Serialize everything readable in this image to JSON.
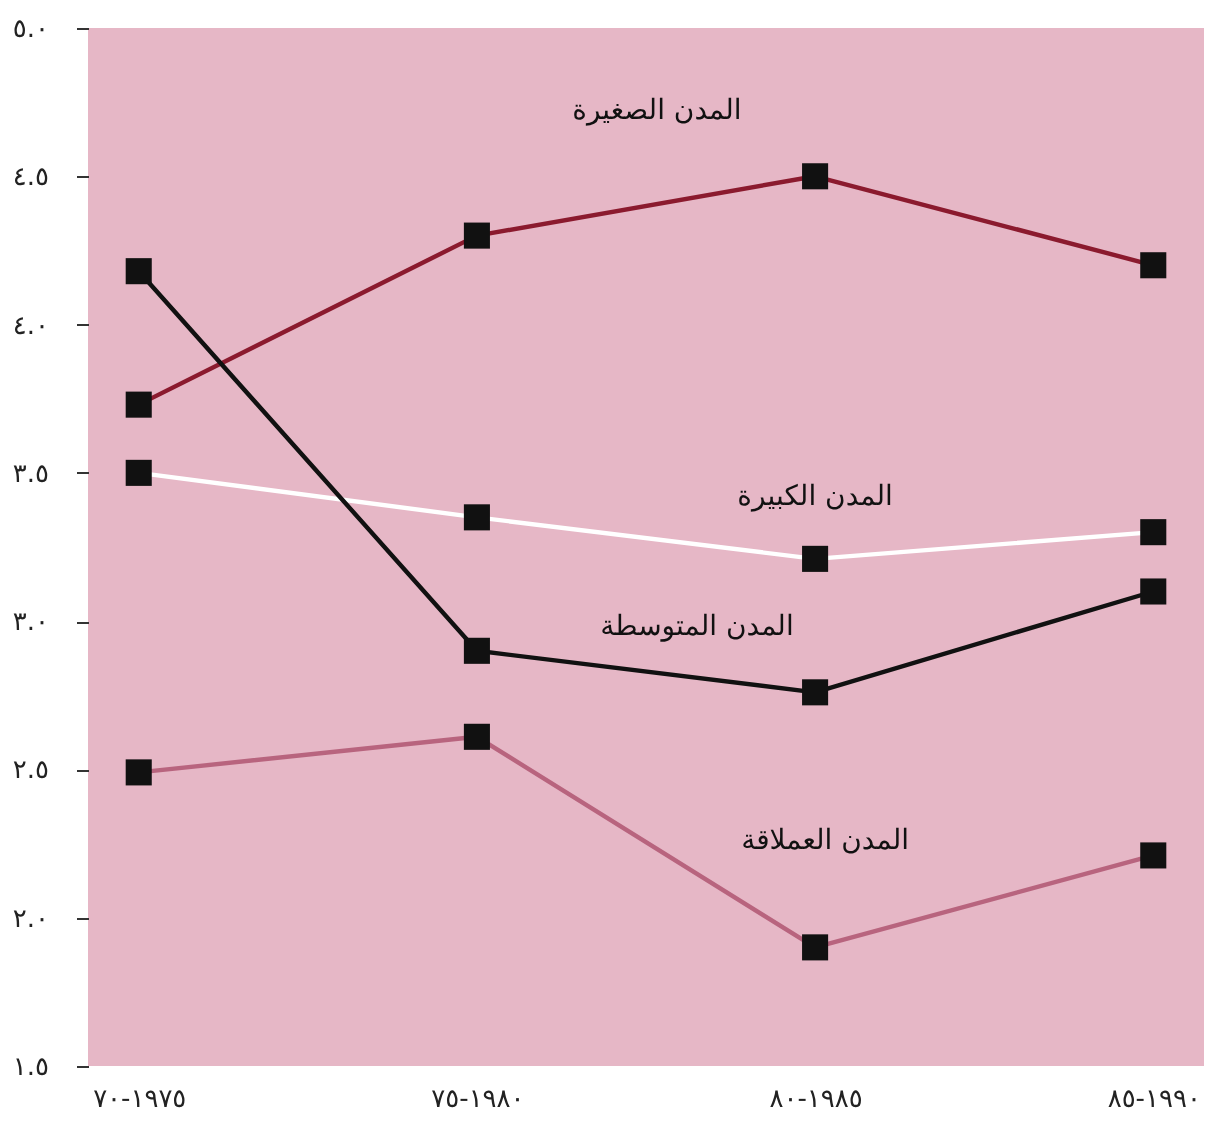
{
  "chart_data": {
    "type": "line",
    "categories": [
      "١٩٧٥-٧٠",
      "١٩٨٠-٧٥",
      "١٩٨٥-٨٠",
      "١٩٩٠-٨٥"
    ],
    "series": [
      {
        "name": "المدن الصغيرة",
        "color": "#8b1a2e",
        "values": [
          3.73,
          4.3,
          4.5,
          4.2
        ]
      },
      {
        "name": "المدن الكبيرة",
        "color": "#ffffff",
        "values": [
          3.5,
          3.35,
          3.21,
          3.3
        ]
      },
      {
        "name": "المدن المتوسطة",
        "color": "#111111",
        "values": [
          4.18,
          2.9,
          2.76,
          3.1
        ]
      },
      {
        "name": "المدن العملاقة",
        "color": "#b8647e",
        "values": [
          2.49,
          2.61,
          1.9,
          2.21
        ]
      }
    ],
    "ylim": [
      1.5,
      5.0
    ],
    "yticks": [
      {
        "value": 1.5,
        "label": "١.٥"
      },
      {
        "value": 2.0,
        "label": "٢.٠"
      },
      {
        "value": 2.5,
        "label": "٢.٥"
      },
      {
        "value": 3.0,
        "label": "٣.٠"
      },
      {
        "value": 3.5,
        "label": "٣.٥"
      },
      {
        "value": 4.0,
        "label": "٤.٠"
      },
      {
        "value": 4.5,
        "label": "٤.٥"
      },
      {
        "value": 5.0,
        "label": "٥.٠"
      }
    ],
    "grid": false,
    "legend": false,
    "marker": "square",
    "line_style": "solid"
  }
}
